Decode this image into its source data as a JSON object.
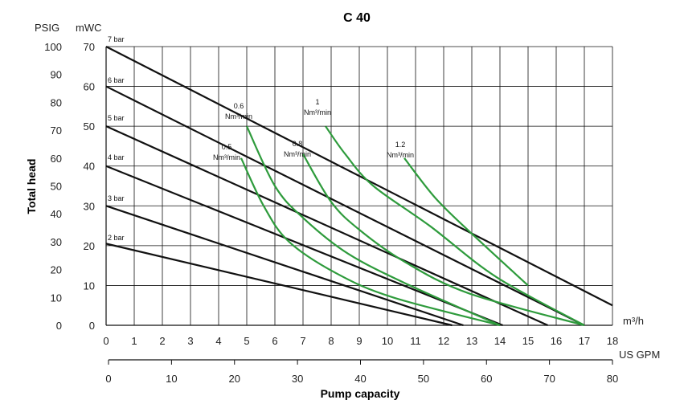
{
  "chart_data": {
    "type": "line",
    "title": "C 40",
    "xlabel": "Pump capacity",
    "ylabel": "Total head",
    "units": {
      "psig": "PSIG",
      "mwc": "mWC",
      "m3h": "m³/h",
      "usgpm": "US GPM"
    },
    "x_m3h": {
      "range": [
        0,
        18
      ],
      "ticks": [
        0,
        1,
        2,
        3,
        4,
        5,
        6,
        7,
        8,
        9,
        10,
        11,
        12,
        13,
        14,
        15,
        16,
        17,
        18
      ]
    },
    "x_usgpm": {
      "range": [
        0,
        80
      ],
      "ticks": [
        0,
        10,
        20,
        30,
        40,
        50,
        60,
        70,
        80
      ]
    },
    "y_mwc": {
      "range": [
        0,
        70
      ],
      "ticks": [
        0,
        10,
        20,
        30,
        40,
        50,
        60,
        70
      ]
    },
    "y_psig": {
      "range": [
        0,
        100
      ],
      "ticks": [
        0,
        10,
        20,
        30,
        40,
        50,
        60,
        70,
        80,
        90,
        100
      ]
    },
    "grid": true,
    "pressure_series": [
      {
        "name": "7 bar",
        "x": [
          0,
          18
        ],
        "y": [
          70,
          5
        ]
      },
      {
        "name": "6 bar",
        "x": [
          0,
          17
        ],
        "y": [
          60,
          0
        ]
      },
      {
        "name": "5 bar",
        "x": [
          0,
          15.7
        ],
        "y": [
          50,
          0
        ]
      },
      {
        "name": "4 bar",
        "x": [
          0,
          14.1
        ],
        "y": [
          40,
          0
        ]
      },
      {
        "name": "3 bar",
        "x": [
          0,
          12.7
        ],
        "y": [
          30,
          0
        ]
      },
      {
        "name": "2 bar",
        "x": [
          0,
          12.3
        ],
        "y": [
          20.5,
          0
        ]
      }
    ],
    "air_series": [
      {
        "name": "0.5\nNm³/min",
        "x": [
          4.8,
          5.6,
          6.5,
          8.2,
          10.2,
          14.0
        ],
        "y": [
          42,
          30,
          21,
          13,
          7,
          0
        ]
      },
      {
        "name": "0.6\nNm³/min",
        "x": [
          5.0,
          6.0,
          7.0,
          8.6,
          10.8,
          14.0
        ],
        "y": [
          50,
          35,
          27,
          18,
          10,
          0
        ]
      },
      {
        "name": "0.8\nNm³/min",
        "x": [
          7.0,
          8.0,
          9.0,
          10.6,
          12.9,
          17.0
        ],
        "y": [
          43,
          31,
          24,
          16,
          8,
          0
        ]
      },
      {
        "name": "1\nNm³/min",
        "x": [
          7.8,
          8.5,
          9.5,
          11.5,
          13.9,
          17.0
        ],
        "y": [
          50,
          43,
          35,
          25,
          12,
          0
        ]
      },
      {
        "name": "1.2\nNm³/min",
        "x": [
          10.6,
          11.7,
          13.0,
          15.0
        ],
        "y": [
          42,
          32,
          23,
          10
        ]
      }
    ],
    "series_colors": {
      "pressure": "#111111",
      "air": "#2e9b3c",
      "grid": "#111111"
    }
  }
}
